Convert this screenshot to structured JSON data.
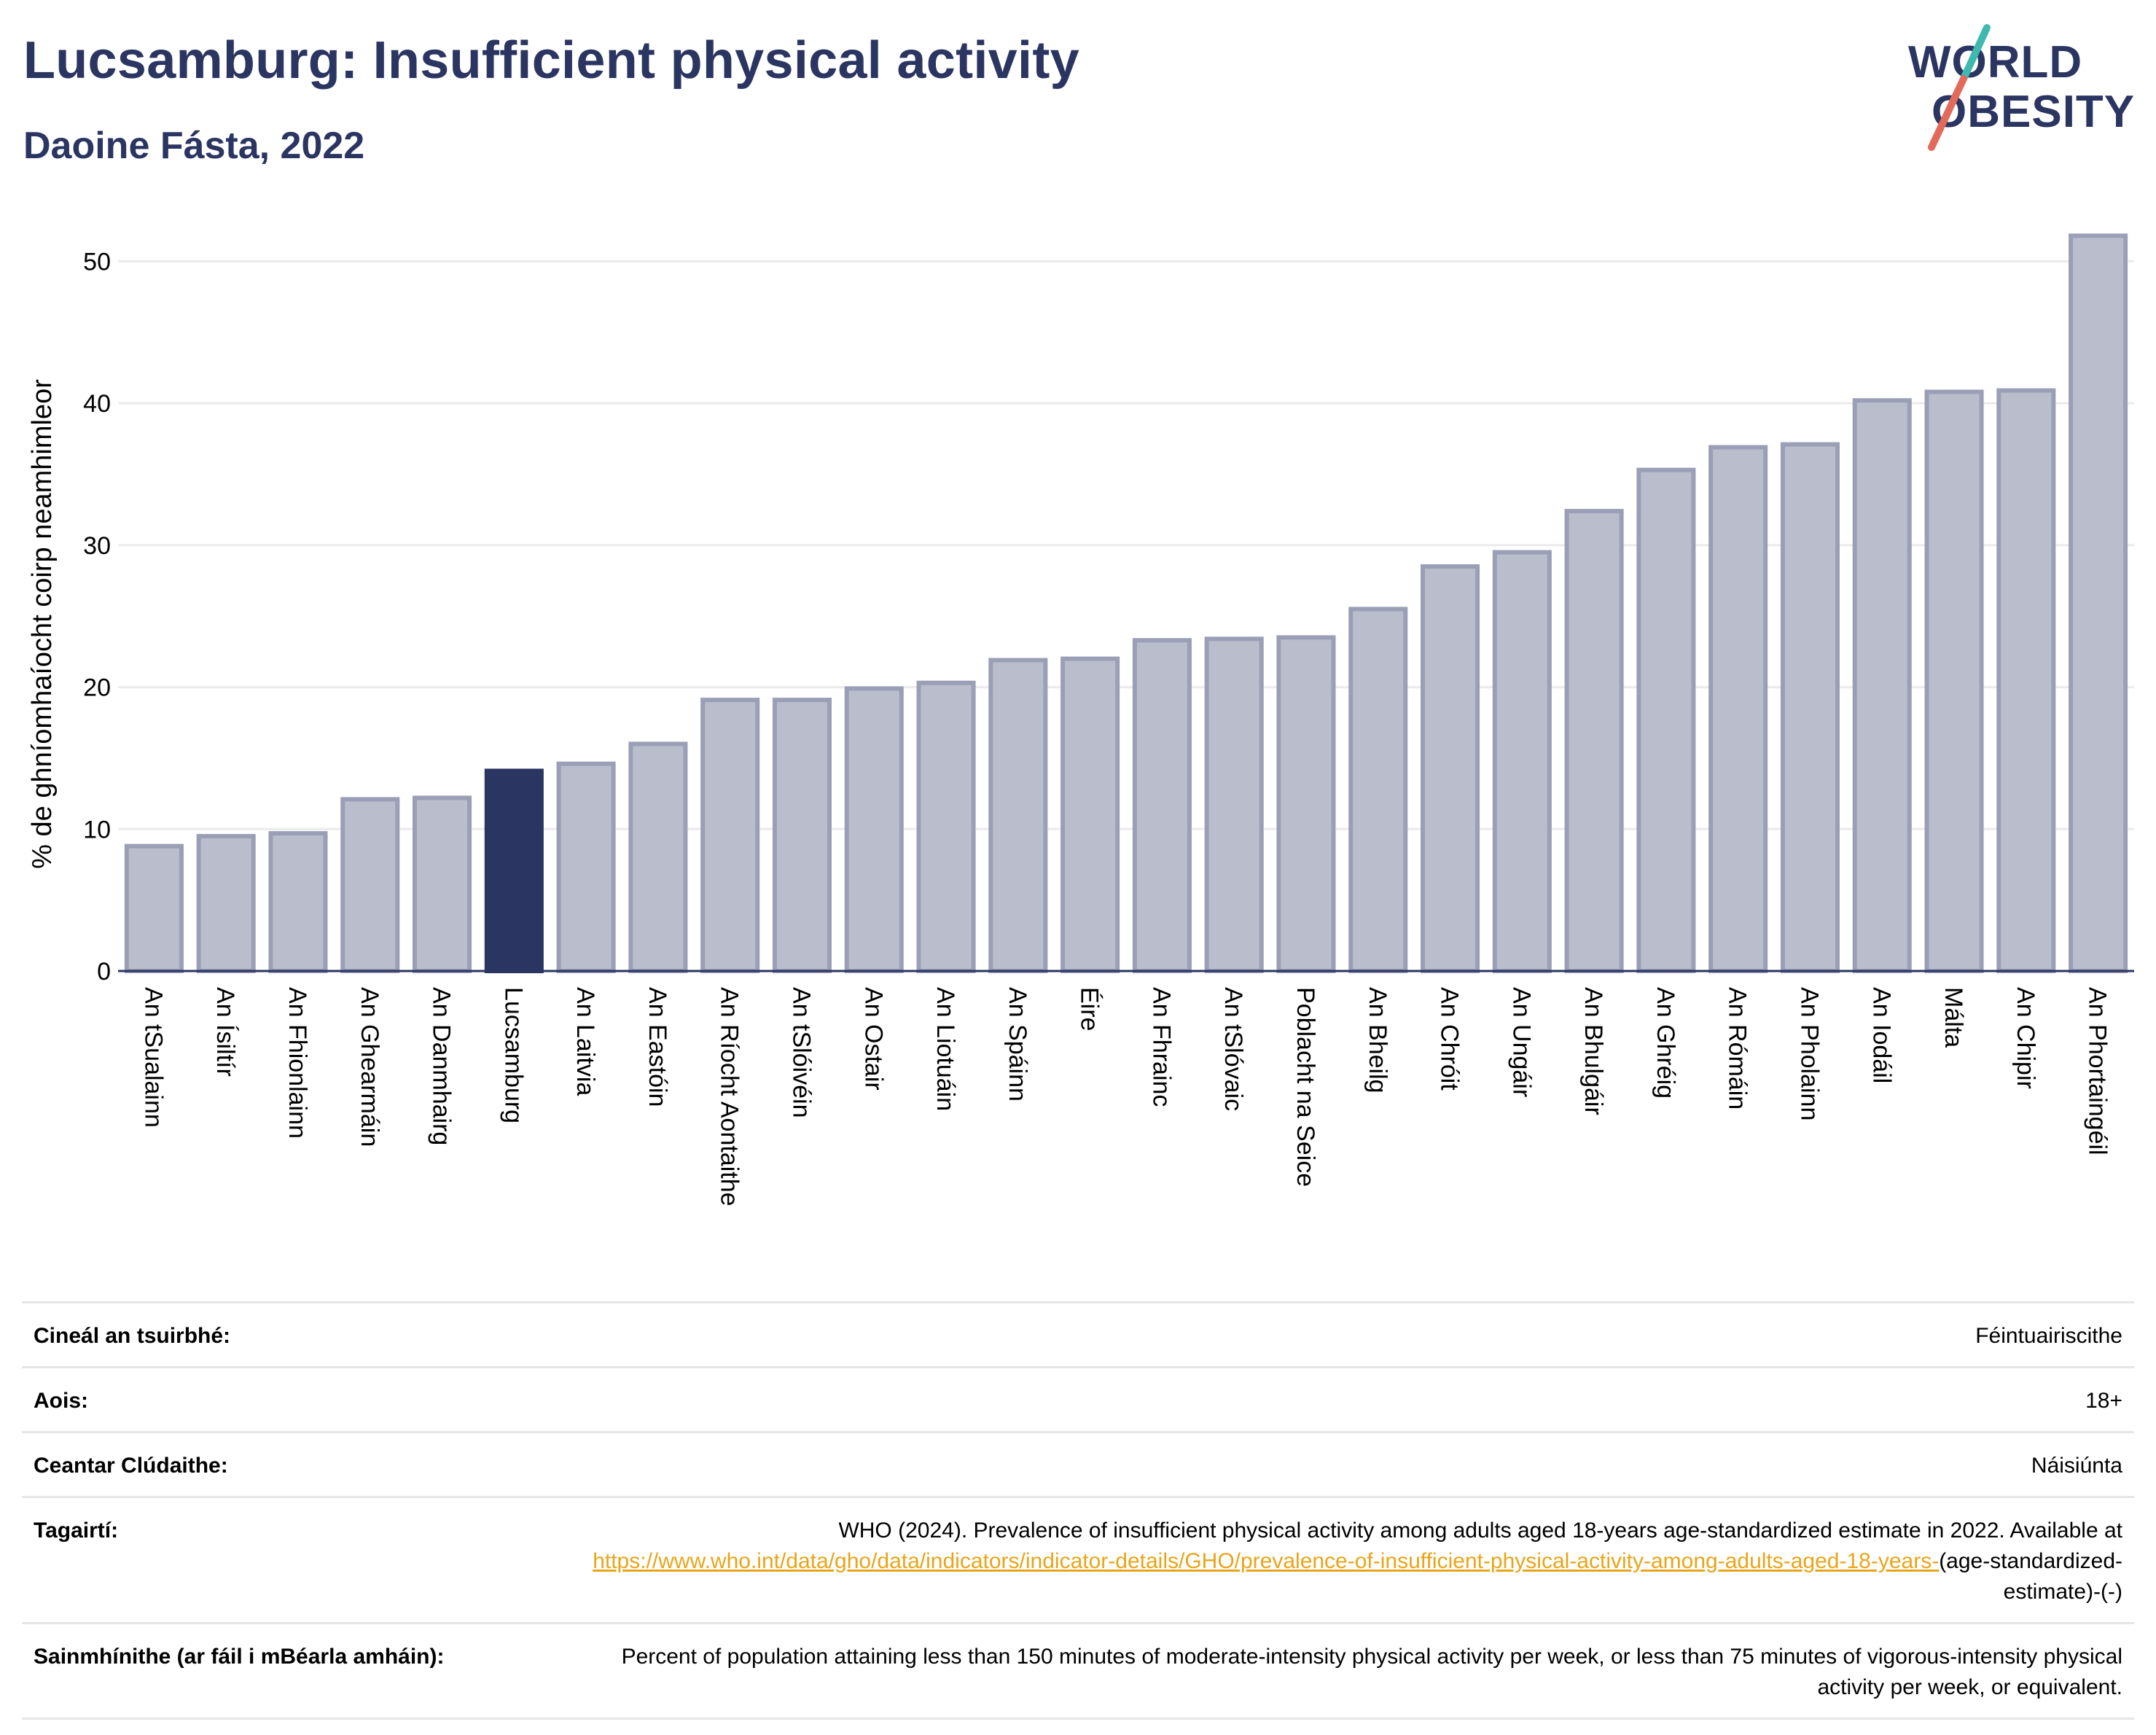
{
  "header": {
    "title": "Lucsamburg: Insufficient physical activity",
    "subtitle": "Daoine Fásta, 2022"
  },
  "logo": {
    "line1": "WORLD",
    "line2": "OBESITY",
    "name": "world-obesity-logo"
  },
  "colors": {
    "highlight": "#2b3561",
    "bar_fill": "#b9bdcc",
    "bar_stroke": "#9a9fb6",
    "title": "#2b3561",
    "link": "#e8a51a",
    "logo_slash_top": "#3fb8b0",
    "logo_slash_bottom": "#e36a5a"
  },
  "chart_data": {
    "type": "bar",
    "title": "Lucsamburg: Insufficient physical activity",
    "subtitle": "Daoine Fásta, 2022",
    "xlabel": "",
    "ylabel": "% de ghníomhaíocht coirp neamhimleor",
    "ylim": [
      0,
      53
    ],
    "yticks": [
      0,
      10,
      20,
      30,
      40,
      50
    ],
    "grid": true,
    "highlight": "Lucsamburg",
    "categories": [
      "An tSualainn",
      "An Ísiltír",
      "An Fhionlainn",
      "An Ghearmáin",
      "An Danmhairg",
      "Lucsamburg",
      "An Laitvia",
      "An Eastóin",
      "An Ríocht Aontaithe",
      "An tSlóivéin",
      "An Ostair",
      "An Liotuáin",
      "An Spáinn",
      "Éire",
      "An Fhrainc",
      "An tSlóvaic",
      "Poblacht na Seice",
      "An Bheilg",
      "An Chróit",
      "An Ungáir",
      "An Bhulgáir",
      "An Ghréig",
      "An Rómáin",
      "An Pholainn",
      "An Iodáil",
      "Málta",
      "An Chipir",
      "An Phortaingéil"
    ],
    "values": [
      8.8,
      9.5,
      9.7,
      12.1,
      12.2,
      14.1,
      14.6,
      16.0,
      19.1,
      19.1,
      19.9,
      20.3,
      21.9,
      22.0,
      23.3,
      23.4,
      23.5,
      25.5,
      28.5,
      29.5,
      32.4,
      35.3,
      36.9,
      37.1,
      40.2,
      40.8,
      40.9,
      51.8
    ]
  },
  "info": {
    "rows": [
      {
        "label": "Cineál an tsuirbhé:",
        "value": "Féintuairiscithe"
      },
      {
        "label": "Aois:",
        "value": "18+"
      },
      {
        "label": "Ceantar Clúdaithe:",
        "value": "Náisiúnta"
      }
    ],
    "references": {
      "label": "Tagairtí:",
      "text": "WHO (2024). Prevalence of insufficient physical activity among adults aged 18-years age-standardized estimate in 2022. Available at",
      "link": "https://www.who.int/data/gho/data/indicators/indicator-details/GHO/prevalence-of-insufficient-physical-activity-among-adults-aged-18-years-",
      "suffix": "(age-standardized-estimate)-(-)"
    },
    "definitions": {
      "label": "Sainmhínithe (ar fáil i mBéarla amháin):",
      "value": "Percent of population attaining less than 150 minutes of moderate-intensity physical activity per week, or less than 75 minutes of vigorous-intensity physical activity per week, or equivalent."
    }
  }
}
